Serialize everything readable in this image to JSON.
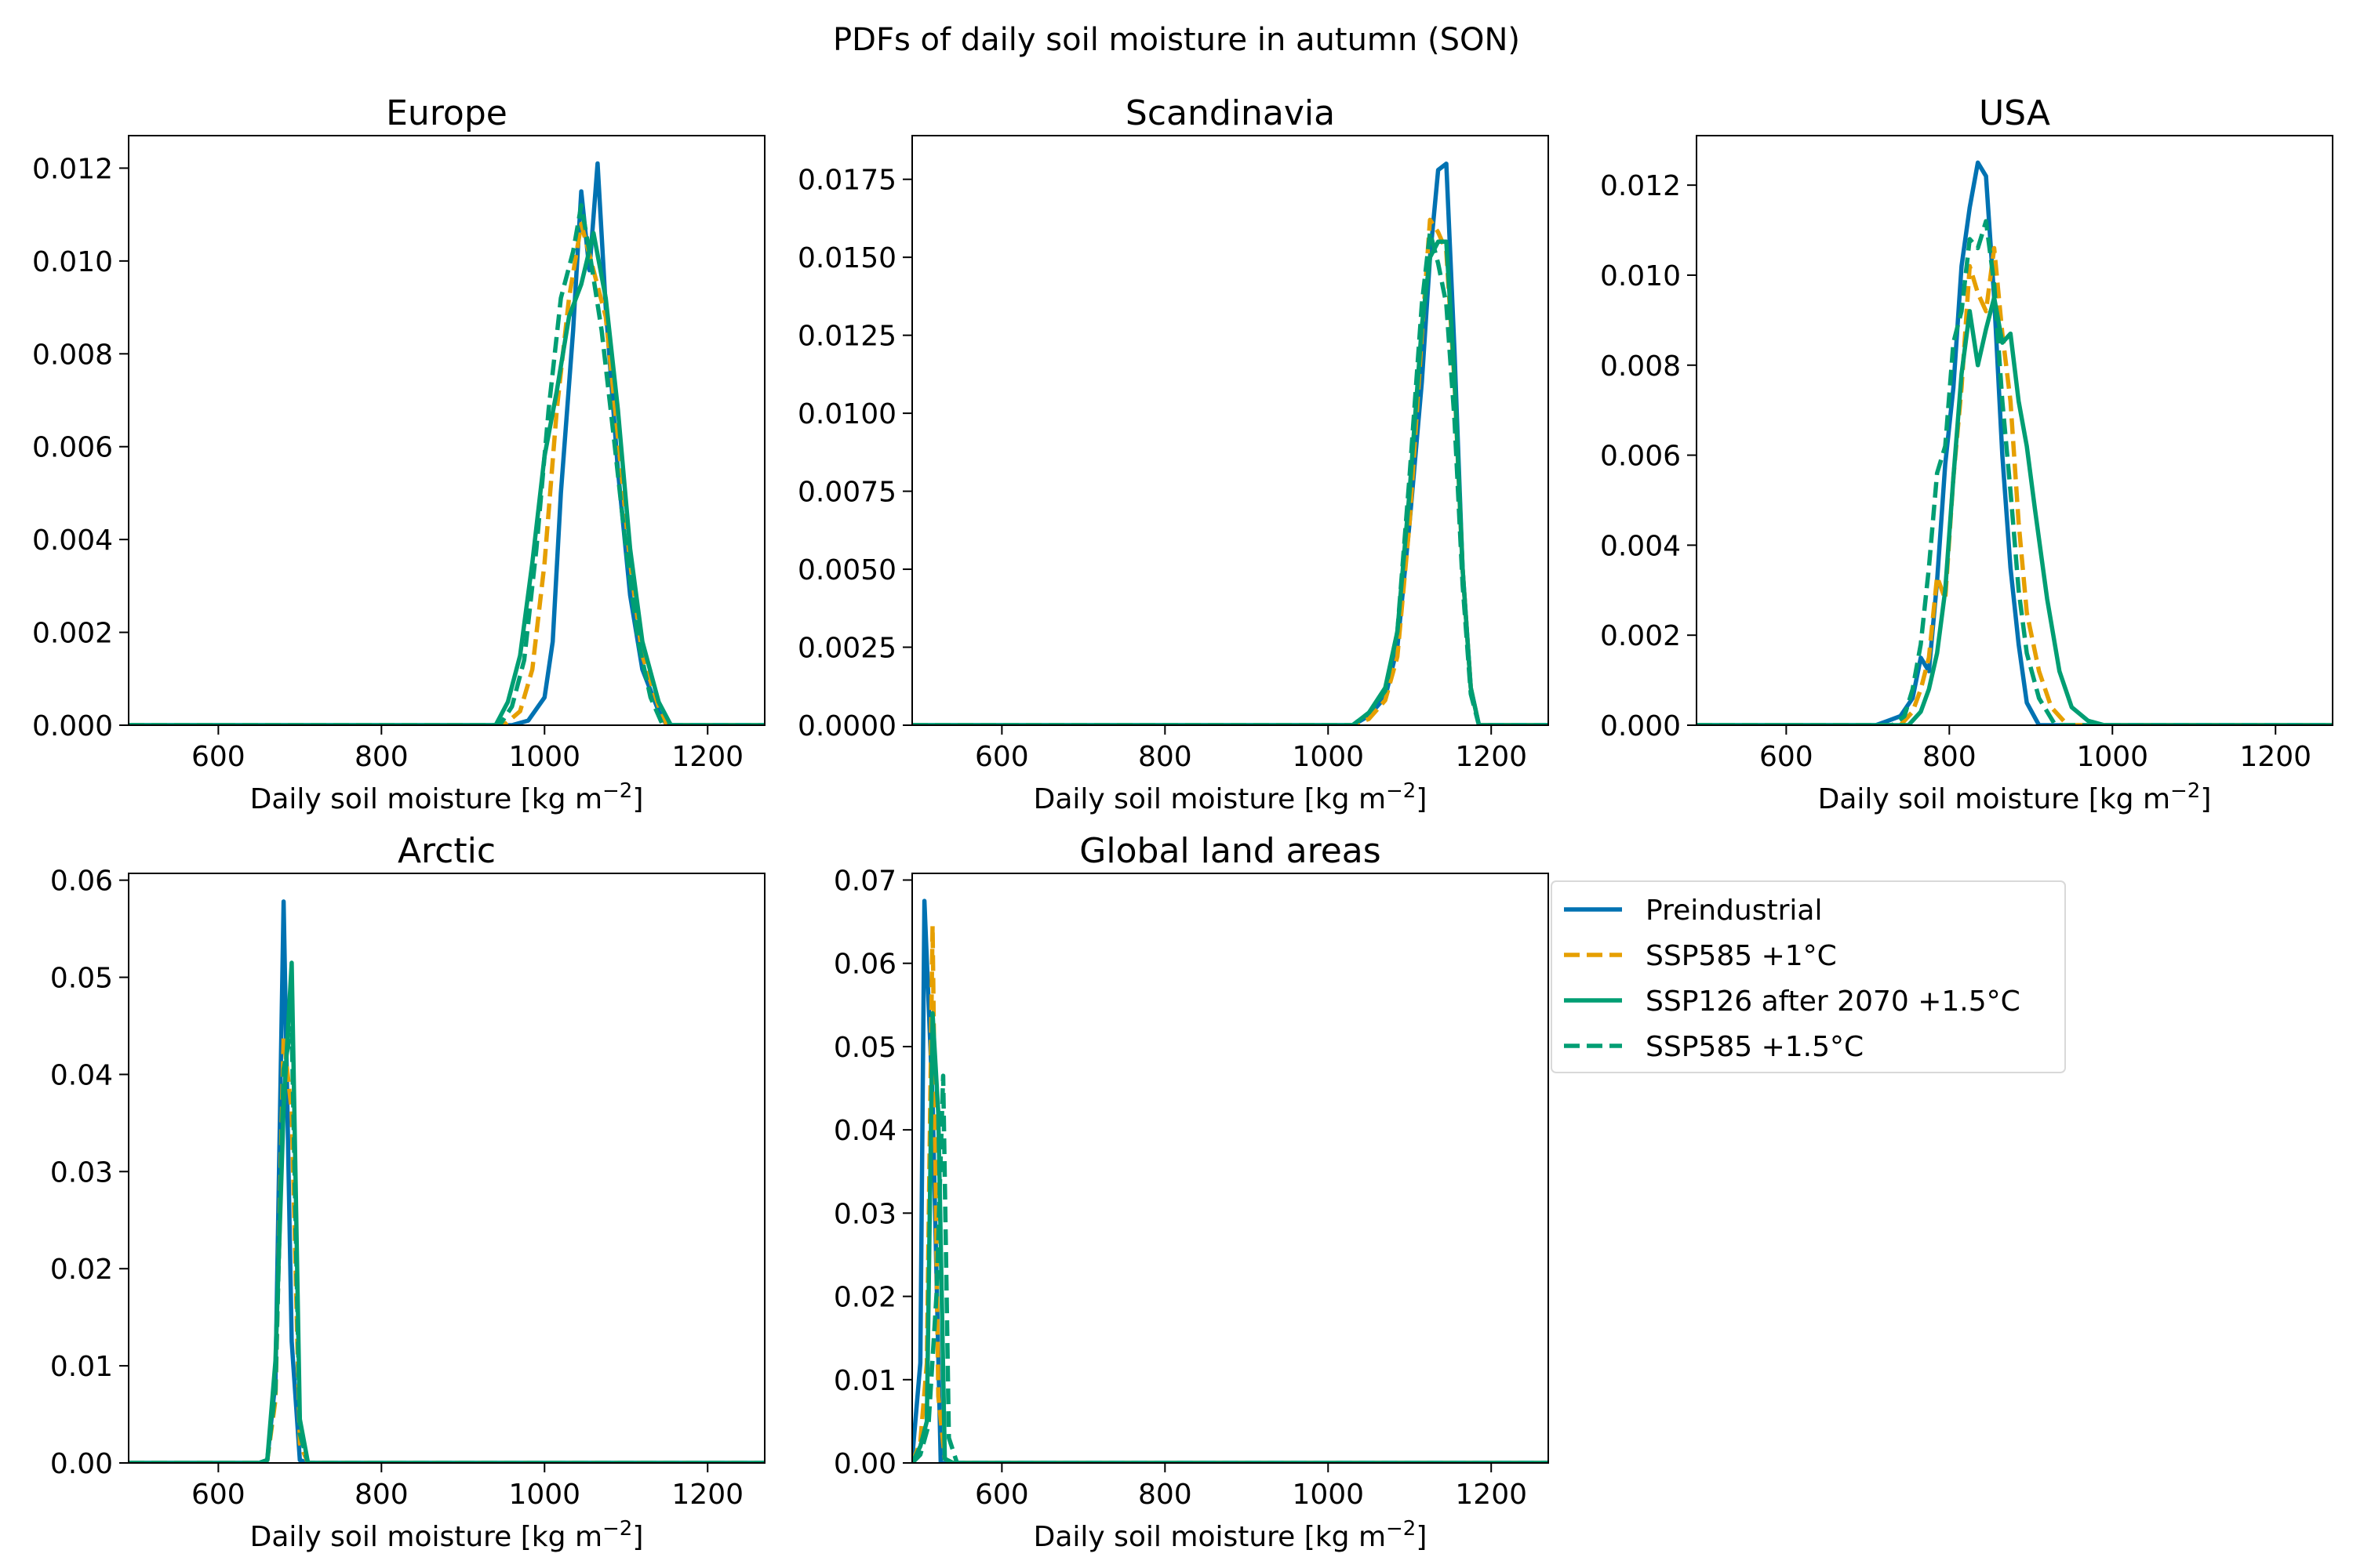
{
  "figure_title": "PDFs of daily soil moisture in autumn (SON)",
  "colors": {
    "Preindustrial": "#0072B2",
    "SSP585 +1°C": "#E69F00",
    "SSP126 after 2070 +1.5°C": "#009E73",
    "SSP585 +1.5°C": "#009E73"
  },
  "legend": {
    "placement": "right of bottom row",
    "entries": [
      {
        "label": "Preindustrial",
        "color": "#0072B2",
        "dash": "solid"
      },
      {
        "label": "SSP585 +1°C",
        "color": "#E69F00",
        "dash": "dashed"
      },
      {
        "label": "SSP126 after 2070 +1.5°C",
        "color": "#009E73",
        "dash": "solid"
      },
      {
        "label": "SSP585 +1.5°C",
        "color": "#009E73",
        "dash": "dashed"
      }
    ]
  },
  "chart_data": [
    {
      "type": "line",
      "title": "Europe",
      "xlabel": "Daily soil moisture [kg m",
      "xlabel_sup": "−2",
      "xlabel_suffix": "]",
      "ylabel": "",
      "xlim": [
        490,
        1270
      ],
      "ylim": [
        0,
        0.0127
      ],
      "xticks": [
        600,
        800,
        1000,
        1200
      ],
      "xtick_labels": [
        "600",
        "800",
        "1000",
        "1200"
      ],
      "yticks": [
        0,
        0.002,
        0.004,
        0.006,
        0.008,
        0.01,
        0.012
      ],
      "ytick_labels": [
        "0.000",
        "0.002",
        "0.004",
        "0.006",
        "0.008",
        "0.010",
        "0.012"
      ],
      "grid": false,
      "series": [
        {
          "name": "Preindustrial",
          "color": "#0072B2",
          "dash": "solid",
          "x": [
            490,
            960,
            980,
            1000,
            1010,
            1020,
            1035,
            1045,
            1055,
            1065,
            1075,
            1090,
            1105,
            1120,
            1140,
            1150,
            1270
          ],
          "y": [
            0,
            0,
            0.0001,
            0.0006,
            0.0018,
            0.005,
            0.0085,
            0.0115,
            0.0098,
            0.0121,
            0.009,
            0.0055,
            0.0028,
            0.0012,
            0.0003,
            0,
            0
          ]
        },
        {
          "name": "SSP585 +1°C",
          "color": "#E69F00",
          "dash": "dashed",
          "x": [
            490,
            950,
            970,
            985,
            1000,
            1015,
            1030,
            1045,
            1060,
            1075,
            1090,
            1105,
            1120,
            1140,
            1150,
            1270
          ],
          "y": [
            0,
            0,
            0.0003,
            0.0012,
            0.0035,
            0.0068,
            0.0092,
            0.0108,
            0.0098,
            0.0088,
            0.0062,
            0.0035,
            0.0015,
            0.0004,
            0,
            0
          ]
        },
        {
          "name": "SSP126 after 2070 +1.5°C",
          "color": "#009E73",
          "dash": "solid",
          "x": [
            490,
            940,
            955,
            970,
            985,
            1000,
            1015,
            1030,
            1045,
            1060,
            1075,
            1090,
            1105,
            1120,
            1140,
            1155,
            1270
          ],
          "y": [
            0,
            0,
            0.0005,
            0.0015,
            0.0035,
            0.0058,
            0.0072,
            0.0088,
            0.0095,
            0.0106,
            0.0092,
            0.0068,
            0.0038,
            0.0018,
            0.0005,
            0,
            0
          ]
        },
        {
          "name": "SSP585 +1.5°C",
          "color": "#009E73",
          "dash": "dashed",
          "x": [
            490,
            945,
            960,
            975,
            990,
            1005,
            1020,
            1035,
            1045,
            1055,
            1070,
            1085,
            1100,
            1115,
            1130,
            1145,
            1270
          ],
          "y": [
            0,
            0,
            0.0004,
            0.0014,
            0.0038,
            0.0068,
            0.0092,
            0.0102,
            0.0112,
            0.0102,
            0.0085,
            0.0062,
            0.0038,
            0.0018,
            0.0006,
            0,
            0
          ]
        }
      ]
    },
    {
      "type": "line",
      "title": "Scandinavia",
      "xlabel": "Daily soil moisture [kg m",
      "xlabel_sup": "−2",
      "xlabel_suffix": "]",
      "ylabel": "",
      "xlim": [
        490,
        1270
      ],
      "ylim": [
        0,
        0.0189
      ],
      "xticks": [
        600,
        800,
        1000,
        1200
      ],
      "xtick_labels": [
        "600",
        "800",
        "1000",
        "1200"
      ],
      "yticks": [
        0,
        0.0025,
        0.005,
        0.0075,
        0.01,
        0.0125,
        0.015,
        0.0175
      ],
      "ytick_labels": [
        "0.0000",
        "0.0025",
        "0.0050",
        "0.0075",
        "0.0100",
        "0.0125",
        "0.0150",
        "0.0175"
      ],
      "grid": false,
      "series": [
        {
          "name": "Preindustrial",
          "color": "#0072B2",
          "dash": "solid",
          "x": [
            490,
            1030,
            1050,
            1070,
            1085,
            1100,
            1115,
            1125,
            1135,
            1145,
            1155,
            1165,
            1175,
            1185,
            1270
          ],
          "y": [
            0,
            0,
            0.0003,
            0.0009,
            0.0025,
            0.0065,
            0.011,
            0.015,
            0.0178,
            0.018,
            0.012,
            0.005,
            0.0012,
            0,
            0
          ]
        },
        {
          "name": "SSP585 +1°C",
          "color": "#E69F00",
          "dash": "dashed",
          "x": [
            490,
            1030,
            1050,
            1070,
            1085,
            1100,
            1115,
            1125,
            1135,
            1145,
            1155,
            1165,
            1175,
            1185,
            1270
          ],
          "y": [
            0,
            0,
            0.0002,
            0.0008,
            0.0022,
            0.0065,
            0.0125,
            0.0162,
            0.0158,
            0.0152,
            0.011,
            0.005,
            0.0012,
            0,
            0
          ]
        },
        {
          "name": "SSP126 after 2070 +1.5°C",
          "color": "#009E73",
          "dash": "solid",
          "x": [
            490,
            1030,
            1050,
            1070,
            1085,
            1100,
            1115,
            1125,
            1135,
            1145,
            1155,
            1165,
            1175,
            1185,
            1270
          ],
          "y": [
            0,
            0,
            0.0004,
            0.0012,
            0.003,
            0.0075,
            0.0128,
            0.015,
            0.0155,
            0.0155,
            0.0112,
            0.005,
            0.0012,
            0,
            0
          ]
        },
        {
          "name": "SSP585 +1.5°C",
          "color": "#009E73",
          "dash": "dashed",
          "x": [
            490,
            1030,
            1050,
            1070,
            1085,
            1100,
            1115,
            1125,
            1135,
            1145,
            1155,
            1165,
            1175,
            1185,
            1270
          ],
          "y": [
            0,
            0,
            0.0004,
            0.0011,
            0.003,
            0.008,
            0.0135,
            0.0158,
            0.0148,
            0.0135,
            0.0098,
            0.0045,
            0.001,
            0,
            0
          ]
        }
      ]
    },
    {
      "type": "line",
      "title": "USA",
      "xlabel": "Daily soil moisture [kg m",
      "xlabel_sup": "−2",
      "xlabel_suffix": "]",
      "ylabel": "",
      "xlim": [
        490,
        1270
      ],
      "ylim": [
        0,
        0.0131
      ],
      "xticks": [
        600,
        800,
        1000,
        1200
      ],
      "xtick_labels": [
        "600",
        "800",
        "1000",
        "1200"
      ],
      "yticks": [
        0,
        0.002,
        0.004,
        0.006,
        0.008,
        0.01,
        0.012
      ],
      "ytick_labels": [
        "0.000",
        "0.002",
        "0.004",
        "0.006",
        "0.008",
        "0.010",
        "0.012"
      ],
      "grid": false,
      "series": [
        {
          "name": "Preindustrial",
          "color": "#0072B2",
          "dash": "solid",
          "x": [
            490,
            710,
            725,
            740,
            755,
            765,
            775,
            785,
            795,
            805,
            815,
            825,
            835,
            845,
            855,
            865,
            875,
            885,
            895,
            910,
            1270
          ],
          "y": [
            0,
            0,
            0.0001,
            0.0002,
            0.0006,
            0.0015,
            0.0012,
            0.0032,
            0.0058,
            0.0075,
            0.0102,
            0.0115,
            0.0125,
            0.0122,
            0.0095,
            0.006,
            0.0035,
            0.0018,
            0.0005,
            0,
            0
          ]
        },
        {
          "name": "SSP585 +1°C",
          "color": "#E69F00",
          "dash": "dashed",
          "x": [
            490,
            740,
            755,
            765,
            775,
            785,
            795,
            805,
            815,
            825,
            835,
            845,
            855,
            865,
            875,
            885,
            895,
            910,
            925,
            945,
            1270
          ],
          "y": [
            0,
            0,
            0.0003,
            0.0008,
            0.0015,
            0.0033,
            0.0028,
            0.0055,
            0.0075,
            0.0102,
            0.0096,
            0.0092,
            0.0106,
            0.0087,
            0.0072,
            0.0045,
            0.0025,
            0.0012,
            0.0004,
            0,
            0
          ]
        },
        {
          "name": "SSP126 after 2070 +1.5°C",
          "color": "#009E73",
          "dash": "solid",
          "x": [
            490,
            750,
            765,
            775,
            785,
            795,
            805,
            815,
            825,
            835,
            845,
            855,
            865,
            875,
            885,
            895,
            905,
            920,
            935,
            950,
            970,
            990,
            1270
          ],
          "y": [
            0,
            0,
            0.0003,
            0.0008,
            0.0016,
            0.003,
            0.0055,
            0.0078,
            0.0092,
            0.008,
            0.0088,
            0.0095,
            0.0085,
            0.0087,
            0.0072,
            0.0062,
            0.0048,
            0.0028,
            0.0012,
            0.0004,
            0.0001,
            0,
            0
          ]
        },
        {
          "name": "SSP585 +1.5°C",
          "color": "#009E73",
          "dash": "dashed",
          "x": [
            490,
            730,
            745,
            755,
            765,
            775,
            785,
            795,
            805,
            815,
            825,
            835,
            845,
            855,
            865,
            875,
            885,
            895,
            910,
            930,
            1270
          ],
          "y": [
            0,
            0,
            0.0002,
            0.0008,
            0.0018,
            0.0035,
            0.0056,
            0.0062,
            0.0085,
            0.0092,
            0.0108,
            0.0106,
            0.0112,
            0.0098,
            0.0072,
            0.0052,
            0.003,
            0.0016,
            0.0006,
            0,
            0
          ]
        }
      ]
    },
    {
      "type": "line",
      "title": "Arctic",
      "xlabel": "Daily soil moisture [kg m",
      "xlabel_sup": "−2",
      "xlabel_suffix": "]",
      "ylabel": "",
      "xlim": [
        490,
        1270
      ],
      "ylim": [
        0,
        0.0607
      ],
      "xticks": [
        600,
        800,
        1000,
        1200
      ],
      "xtick_labels": [
        "600",
        "800",
        "1000",
        "1200"
      ],
      "yticks": [
        0,
        0.01,
        0.02,
        0.03,
        0.04,
        0.05,
        0.06
      ],
      "ytick_labels": [
        "0.00",
        "0.01",
        "0.02",
        "0.03",
        "0.04",
        "0.05",
        "0.06"
      ],
      "grid": false,
      "series": [
        {
          "name": "Preindustrial",
          "color": "#0072B2",
          "dash": "solid",
          "x": [
            490,
            650,
            660,
            670,
            680,
            690,
            700,
            710,
            1270
          ],
          "y": [
            0,
            0,
            0.0003,
            0.0085,
            0.0578,
            0.0125,
            0.0003,
            0,
            0
          ]
        },
        {
          "name": "SSP585 +1°C",
          "color": "#E69F00",
          "dash": "dashed",
          "x": [
            490,
            650,
            660,
            670,
            680,
            690,
            700,
            710,
            1270
          ],
          "y": [
            0,
            0,
            0.0003,
            0.0065,
            0.0438,
            0.0362,
            0.002,
            0,
            0
          ]
        },
        {
          "name": "SSP126 after 2070 +1.5°C",
          "color": "#009E73",
          "dash": "solid",
          "x": [
            490,
            650,
            660,
            670,
            680,
            690,
            700,
            710,
            1270
          ],
          "y": [
            0,
            0,
            0.0003,
            0.0105,
            0.0365,
            0.0515,
            0.0045,
            0,
            0
          ]
        },
        {
          "name": "SSP585 +1.5°C",
          "color": "#009E73",
          "dash": "dashed",
          "x": [
            490,
            650,
            660,
            670,
            680,
            690,
            700,
            710,
            1270
          ],
          "y": [
            0,
            0,
            0.0003,
            0.0075,
            0.0405,
            0.0448,
            0.003,
            0,
            0
          ]
        }
      ]
    },
    {
      "type": "line",
      "title": "Global land areas",
      "xlabel": "Daily soil moisture [kg m",
      "xlabel_sup": "−2",
      "xlabel_suffix": "]",
      "ylabel": "",
      "xlim": [
        490,
        1270
      ],
      "ylim": [
        0,
        0.0708
      ],
      "xticks": [
        600,
        800,
        1000,
        1200
      ],
      "xtick_labels": [
        "600",
        "800",
        "1000",
        "1200"
      ],
      "yticks": [
        0,
        0.01,
        0.02,
        0.03,
        0.04,
        0.05,
        0.06,
        0.07
      ],
      "ytick_labels": [
        "0.00",
        "0.01",
        "0.02",
        "0.03",
        "0.04",
        "0.05",
        "0.06",
        "0.07"
      ],
      "grid": false,
      "series": [
        {
          "name": "Preindustrial",
          "color": "#0072B2",
          "dash": "solid",
          "x": [
            490,
            500,
            505,
            515,
            525,
            535,
            1270
          ],
          "y": [
            0.0005,
            0.012,
            0.0675,
            0.0435,
            0,
            0,
            0
          ]
        },
        {
          "name": "SSP585 +1°C",
          "color": "#E69F00",
          "dash": "dashed",
          "x": [
            490,
            500,
            508,
            515,
            522,
            530,
            540,
            1270
          ],
          "y": [
            0,
            0.0025,
            0.012,
            0.0645,
            0.008,
            0.0005,
            0,
            0
          ]
        },
        {
          "name": "SSP126 after 2070 +1.5°C",
          "color": "#009E73",
          "dash": "solid",
          "x": [
            490,
            500,
            508,
            515,
            522,
            530,
            540,
            1270
          ],
          "y": [
            0,
            0.002,
            0.005,
            0.054,
            0.042,
            0.0005,
            0,
            0
          ]
        },
        {
          "name": "SSP585 +1.5°C",
          "color": "#009E73",
          "dash": "dashed",
          "x": [
            490,
            500,
            510,
            520,
            528,
            535,
            545,
            1270
          ],
          "y": [
            0,
            0.001,
            0.0045,
            0.0205,
            0.0465,
            0.003,
            0,
            0
          ]
        }
      ]
    }
  ]
}
